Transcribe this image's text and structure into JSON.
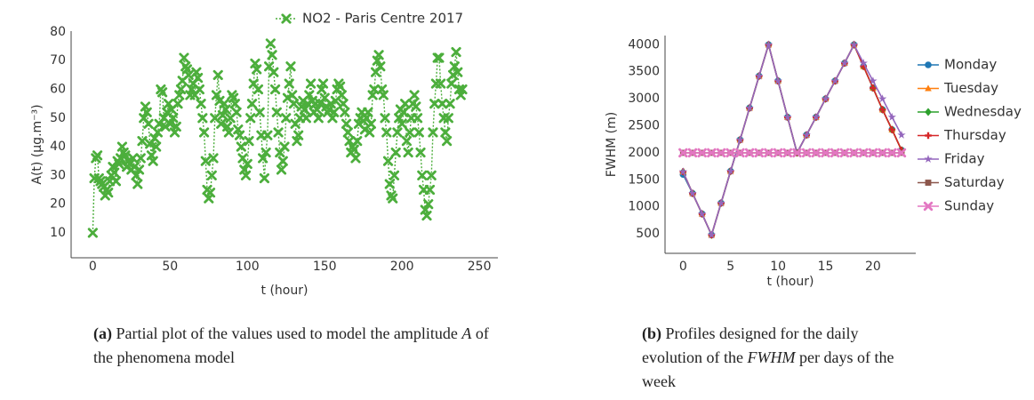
{
  "chart_data": [
    {
      "type": "line",
      "marker": "x",
      "linestyle": "dotted",
      "xlabel": "t (hour)",
      "ylabel": "A(t) (µg.m⁻³)",
      "legend": "upper right",
      "caption_label": "(a)",
      "caption": [
        "Partial plot of the values used to model the amplitude ",
        "A",
        " of the phenomena model"
      ],
      "xlim": [
        -14,
        262
      ],
      "xticks": [
        0,
        50,
        100,
        150,
        200,
        250
      ],
      "ylim": [
        1.3,
        80.3
      ],
      "yticks": [
        10,
        20,
        30,
        40,
        50,
        60,
        70,
        80
      ],
      "x": [
        0,
        1,
        2,
        3,
        4,
        5,
        6,
        7,
        8,
        9,
        10,
        11,
        12,
        13,
        14,
        15,
        16,
        17,
        18,
        19,
        20,
        21,
        22,
        23,
        24,
        25,
        26,
        27,
        28,
        29,
        30,
        31,
        32,
        33,
        34,
        35,
        36,
        37,
        38,
        39,
        40,
        41,
        42,
        43,
        44,
        45,
        46,
        47,
        48,
        49,
        50,
        51,
        52,
        53,
        54,
        55,
        56,
        57,
        58,
        59,
        60,
        61,
        62,
        63,
        64,
        65,
        66,
        67,
        68,
        69,
        70,
        71,
        72,
        73,
        74,
        75,
        76,
        77,
        78,
        79,
        80,
        81,
        82,
        83,
        84,
        85,
        86,
        87,
        88,
        89,
        90,
        91,
        92,
        93,
        94,
        95,
        96,
        97,
        98,
        99,
        100,
        101,
        102,
        103,
        104,
        105,
        106,
        107,
        108,
        109,
        110,
        111,
        112,
        113,
        114,
        115,
        116,
        117,
        118,
        119,
        120,
        121,
        122,
        123,
        124,
        125,
        126,
        127,
        128,
        129,
        130,
        131,
        132,
        133,
        134,
        135,
        136,
        137,
        138,
        139,
        140,
        141,
        142,
        143,
        144,
        145,
        146,
        147,
        148,
        149,
        150,
        151,
        152,
        153,
        154,
        155,
        156,
        157,
        158,
        159,
        160,
        161,
        162,
        163,
        164,
        165,
        166,
        167,
        168,
        169,
        170,
        171,
        172,
        173,
        174,
        175,
        176,
        177,
        178,
        179,
        180,
        181,
        182,
        183,
        184,
        185,
        186,
        187,
        188,
        189,
        190,
        191,
        192,
        193,
        194,
        195,
        196,
        197,
        198,
        199,
        200,
        201,
        202,
        203,
        204,
        205,
        206,
        207,
        208,
        209,
        210,
        211,
        212,
        213,
        214,
        215,
        216,
        217,
        218,
        219,
        220,
        221,
        222,
        223,
        224,
        225,
        226,
        227,
        228,
        229,
        230,
        231,
        232,
        233,
        234,
        235,
        236,
        237,
        238,
        239
      ],
      "series": [
        {
          "name": "NO2 - Paris Centre 2017",
          "color": "#4cae3c",
          "values": [
            10,
            29,
            36,
            37,
            29,
            28,
            27,
            26,
            23,
            25,
            24,
            28,
            30,
            33,
            31,
            28,
            35,
            34,
            36,
            40,
            38,
            37,
            33,
            35,
            34,
            32,
            36,
            33,
            30,
            27,
            32,
            36,
            42,
            50,
            54,
            52,
            48,
            41,
            37,
            35,
            43,
            40,
            45,
            48,
            60,
            59,
            50,
            47,
            52,
            55,
            48,
            53,
            50,
            45,
            47,
            55,
            58,
            60,
            63,
            71,
            68,
            67,
            65,
            58,
            60,
            62,
            58,
            66,
            64,
            60,
            55,
            50,
            45,
            35,
            25,
            22,
            24,
            30,
            36,
            50,
            58,
            65,
            56,
            48,
            51,
            55,
            53,
            47,
            45,
            50,
            58,
            57,
            55,
            52,
            46,
            44,
            40,
            36,
            32,
            30,
            34,
            42,
            50,
            55,
            62,
            69,
            67,
            60,
            52,
            44,
            36,
            29,
            38,
            44,
            68,
            76,
            72,
            66,
            60,
            52,
            45,
            38,
            32,
            35,
            40,
            50,
            57,
            62,
            68,
            58,
            55,
            48,
            42,
            44,
            50,
            54,
            56,
            53,
            50,
            55,
            58,
            62,
            56,
            52,
            55,
            53,
            50,
            55,
            60,
            62,
            57,
            54,
            52,
            53,
            55,
            50,
            52,
            56,
            60,
            62,
            61,
            58,
            55,
            52,
            48,
            45,
            42,
            38,
            40,
            39,
            36,
            42,
            48,
            50,
            52,
            49,
            46,
            50,
            52,
            45,
            48,
            58,
            60,
            66,
            70,
            72,
            68,
            60,
            58,
            50,
            45,
            35,
            27,
            23,
            22,
            30,
            38,
            45,
            50,
            53,
            48,
            52,
            55,
            42,
            38,
            45,
            50,
            55,
            58,
            54,
            50,
            45,
            38,
            30,
            25,
            18,
            16,
            20,
            25,
            30,
            45,
            55,
            62,
            71,
            71,
            62,
            55,
            50,
            45,
            42,
            50,
            55,
            62,
            65,
            68,
            73,
            66,
            60,
            58,
            60
          ]
        }
      ]
    },
    {
      "type": "line",
      "linestyle": "solid",
      "xlabel": "t (hour)",
      "ylabel": "FWHM (m)",
      "legend": "center right outside",
      "caption_label": "(b)",
      "caption": [
        "Profiles designed for the daily evolution of the ",
        "FWHM",
        " per days of the week"
      ],
      "xlim": [
        -1.9,
        24.5
      ],
      "xticks": [
        0,
        5,
        10,
        15,
        20
      ],
      "ylim": [
        140,
        4170
      ],
      "yticks": [
        500,
        1000,
        1500,
        2000,
        2500,
        3000,
        3500,
        4000
      ],
      "x": [
        0,
        1,
        2,
        3,
        4,
        5,
        6,
        7,
        8,
        9,
        10,
        11,
        12,
        13,
        14,
        15,
        16,
        17,
        18,
        19,
        20,
        21,
        22,
        23
      ],
      "series": [
        {
          "name": "Monday",
          "color": "#1f77b4",
          "marker": "circle",
          "values": [
            1600,
            1250,
            870,
            480,
            1070,
            1660,
            2240,
            2830,
            3420,
            4000,
            3330,
            2660,
            2000,
            2330,
            2660,
            3000,
            3330,
            3660,
            4000,
            3600,
            3200,
            2800,
            2430,
            2050
          ]
        },
        {
          "name": "Tuesday",
          "color": "#ff7f0e",
          "marker": "triangle",
          "values": [
            1650,
            1250,
            870,
            480,
            1070,
            1660,
            2240,
            2830,
            3420,
            4000,
            3330,
            2660,
            2000,
            2330,
            2660,
            3000,
            3330,
            3660,
            4000,
            3600,
            3200,
            2800,
            2430,
            2050
          ]
        },
        {
          "name": "Wednesday",
          "color": "#2ca02c",
          "marker": "diamond",
          "values": [
            1650,
            1250,
            870,
            480,
            1070,
            1660,
            2240,
            2830,
            3420,
            4000,
            3330,
            2660,
            2000,
            2330,
            2660,
            3000,
            3330,
            3660,
            4000,
            3600,
            3200,
            2800,
            2430,
            2050
          ]
        },
        {
          "name": "Thursday",
          "color": "#d62728",
          "marker": "plus",
          "values": [
            1650,
            1250,
            870,
            480,
            1070,
            1660,
            2240,
            2830,
            3420,
            4000,
            3330,
            2660,
            2000,
            2330,
            2660,
            3000,
            3330,
            3660,
            4000,
            3600,
            3200,
            2800,
            2430,
            2050
          ]
        },
        {
          "name": "Friday",
          "color": "#9467bd",
          "marker": "star",
          "values": [
            1650,
            1250,
            870,
            480,
            1070,
            1660,
            2240,
            2830,
            3420,
            4000,
            3330,
            2660,
            2000,
            2330,
            2660,
            3000,
            3330,
            3660,
            4000,
            3660,
            3330,
            3000,
            2660,
            2330
          ]
        },
        {
          "name": "Saturday",
          "color": "#8c564b",
          "marker": "square",
          "values": [
            2000,
            2000,
            2000,
            2000,
            2000,
            2000,
            2000,
            2000,
            2000,
            2000,
            2000,
            2000,
            2000,
            2000,
            2000,
            2000,
            2000,
            2000,
            2000,
            2000,
            2000,
            2000,
            2000,
            2000
          ]
        },
        {
          "name": "Sunday",
          "color": "#e377c2",
          "marker": "x",
          "values": [
            2000,
            2000,
            2000,
            2000,
            2000,
            2000,
            2000,
            2000,
            2000,
            2000,
            2000,
            2000,
            2000,
            2000,
            2000,
            2000,
            2000,
            2000,
            2000,
            2000,
            2000,
            2000,
            2000,
            2000
          ]
        }
      ]
    }
  ]
}
